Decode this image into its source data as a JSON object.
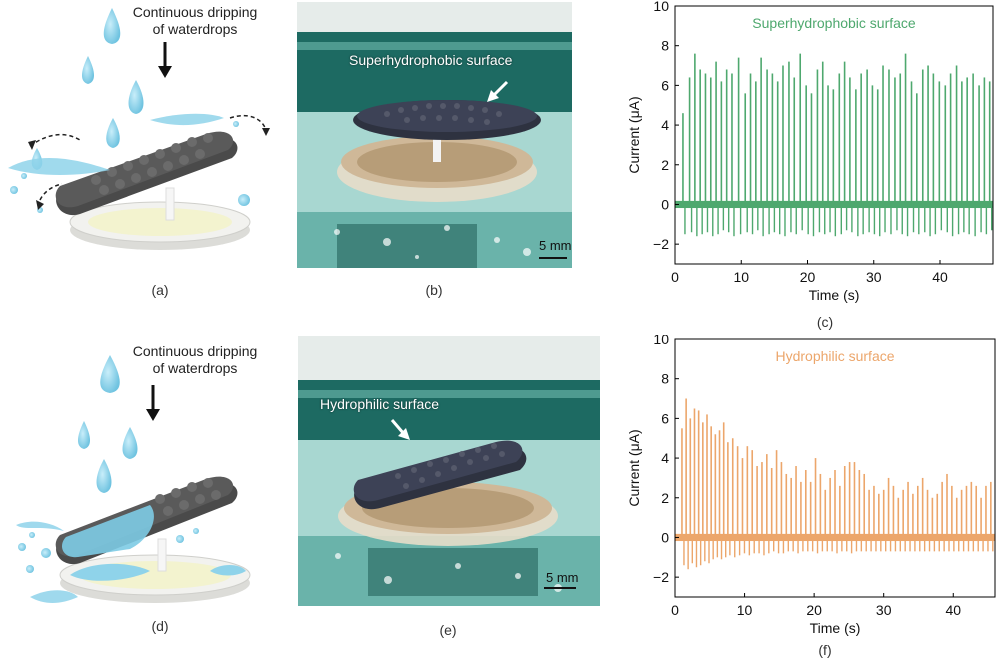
{
  "panels": {
    "a": {
      "label": "(a)",
      "caption_line1": "Continuous dripping",
      "caption_line2": "of waterdrops",
      "colors": {
        "water": "#8fd3ea",
        "disc": "#e9e9e6",
        "fabric": "#4a4a4a"
      }
    },
    "b": {
      "label": "(b)",
      "annotation": "Superhydrophobic surface",
      "scale": "5 mm"
    },
    "c": {
      "label": "(c)",
      "chart_data": {
        "type": "line",
        "title": "Superhydrophobic surface",
        "xlabel": "Time (s)",
        "ylabel": "Current (μA)",
        "xlim": [
          0,
          48
        ],
        "ylim": [
          -3,
          10
        ],
        "xticks": [
          0,
          10,
          20,
          30,
          40
        ],
        "yticks": [
          -2,
          0,
          2,
          4,
          6,
          8,
          10
        ],
        "color": "#4ea86e",
        "baseline": 0,
        "series": [
          {
            "peak_times": [
              1.2,
              2.2,
              3.0,
              3.8,
              4.6,
              5.4,
              6.2,
              7.0,
              7.8,
              8.6,
              9.6,
              10.6,
              11.4,
              12.2,
              13.0,
              13.9,
              14.7,
              15.5,
              16.3,
              17.2,
              18.0,
              18.9,
              19.8,
              20.6,
              21.5,
              22.3,
              23.1,
              23.9,
              24.8,
              25.6,
              26.4,
              27.3,
              28.1,
              29.0,
              29.8,
              30.6,
              31.4,
              32.3,
              33.2,
              34.0,
              34.8,
              35.7,
              36.5,
              37.4,
              38.2,
              39.0,
              39.9,
              40.8,
              41.6,
              42.5,
              43.3,
              44.1,
              45.0,
              45.9,
              46.7,
              47.5
            ],
            "peak_values": [
              4.6,
              6.4,
              7.6,
              6.8,
              6.6,
              6.4,
              7.2,
              6.2,
              6.8,
              6.6,
              7.4,
              5.6,
              6.6,
              6.2,
              7.4,
              6.8,
              6.6,
              6.2,
              7.0,
              7.2,
              6.4,
              7.6,
              6.0,
              5.6,
              6.8,
              7.2,
              6.0,
              5.8,
              6.6,
              7.2,
              6.4,
              5.8,
              6.6,
              6.8,
              6.0,
              5.8,
              7.0,
              6.8,
              6.4,
              6.6,
              7.6,
              6.2,
              5.6,
              6.8,
              7.0,
              6.6,
              6.2,
              6.0,
              6.6,
              7.0,
              6.2,
              6.4,
              6.6,
              6.0,
              6.4,
              6.2
            ],
            "trough_values": [
              -1.5,
              -1.4,
              -1.6,
              -1.5,
              -1.4,
              -1.6,
              -1.5,
              -1.3,
              -1.4,
              -1.6,
              -1.5,
              -1.4,
              -1.5,
              -1.3,
              -1.6,
              -1.5,
              -1.4,
              -1.5,
              -1.6,
              -1.4,
              -1.5,
              -1.3,
              -1.5,
              -1.6,
              -1.4,
              -1.5,
              -1.4,
              -1.6,
              -1.5,
              -1.3,
              -1.4,
              -1.6,
              -1.5,
              -1.4,
              -1.5,
              -1.6,
              -1.4,
              -1.5,
              -1.3,
              -1.5,
              -1.6,
              -1.4,
              -1.5,
              -1.4,
              -1.6,
              -1.5,
              -1.3,
              -1.4,
              -1.6,
              -1.5,
              -1.4,
              -1.5,
              -1.6,
              -1.4,
              -1.5,
              -1.3
            ]
          }
        ]
      }
    },
    "d": {
      "label": "(d)",
      "caption_line1": "Continuous dripping",
      "caption_line2": "of waterdrops"
    },
    "e": {
      "label": "(e)",
      "annotation": "Hydrophilic surface",
      "scale": "5 mm"
    },
    "f": {
      "label": "(f)",
      "chart_data": {
        "type": "line",
        "title": "Hydrophilic surface",
        "xlabel": "Time (s)",
        "ylabel": "Current (μA)",
        "xlim": [
          0,
          46
        ],
        "ylim": [
          -3,
          10
        ],
        "xticks": [
          0,
          10,
          20,
          30,
          40
        ],
        "yticks": [
          -2,
          0,
          2,
          4,
          6,
          8,
          10
        ],
        "color": "#eca66b",
        "baseline": 0,
        "series": [
          {
            "peak_times": [
              1.0,
              1.6,
              2.2,
              2.8,
              3.4,
              4.0,
              4.6,
              5.2,
              5.8,
              6.4,
              7.0,
              7.6,
              8.3,
              9.0,
              9.7,
              10.4,
              11.1,
              11.8,
              12.5,
              13.2,
              13.9,
              14.6,
              15.3,
              16.0,
              16.7,
              17.4,
              18.1,
              18.8,
              19.5,
              20.2,
              20.9,
              21.6,
              22.3,
              23.0,
              23.7,
              24.4,
              25.1,
              25.8,
              26.5,
              27.2,
              27.9,
              28.6,
              29.3,
              30.0,
              30.7,
              31.4,
              32.1,
              32.8,
              33.5,
              34.2,
              34.9,
              35.6,
              36.3,
              37.0,
              37.7,
              38.4,
              39.1,
              39.8,
              40.5,
              41.2,
              41.9,
              42.6,
              43.3,
              44.0,
              44.7,
              45.4
            ],
            "peak_values": [
              5.5,
              7.0,
              6.0,
              6.5,
              6.4,
              5.8,
              6.2,
              5.6,
              5.2,
              5.4,
              5.8,
              4.8,
              5.0,
              4.6,
              4.0,
              4.6,
              4.4,
              3.6,
              3.8,
              4.2,
              3.5,
              4.4,
              3.8,
              3.2,
              3.0,
              3.6,
              2.8,
              3.4,
              2.8,
              4.0,
              3.2,
              2.4,
              3.0,
              3.4,
              2.6,
              3.6,
              3.8,
              3.8,
              3.4,
              3.2,
              2.4,
              2.6,
              2.2,
              2.4,
              3.0,
              2.6,
              2.0,
              2.4,
              2.8,
              2.2,
              2.6,
              3.0,
              2.4,
              2.0,
              2.2,
              2.8,
              3.2,
              2.6,
              2.0,
              2.4,
              2.6,
              2.8,
              2.6,
              2.0,
              2.6,
              2.8
            ],
            "trough_values": [
              -1.4,
              -1.6,
              -1.3,
              -1.5,
              -1.4,
              -1.2,
              -1.3,
              -1.1,
              -1.0,
              -1.1,
              -1.0,
              -0.9,
              -1.0,
              -0.9,
              -0.8,
              -0.9,
              -0.8,
              -0.8,
              -0.9,
              -0.8,
              -0.7,
              -0.8,
              -0.8,
              -0.7,
              -0.7,
              -0.8,
              -0.7,
              -0.7,
              -0.7,
              -0.8,
              -0.7,
              -0.7,
              -0.7,
              -0.8,
              -0.7,
              -0.7,
              -0.8,
              -0.7,
              -0.7,
              -0.7,
              -0.7,
              -0.7,
              -0.7,
              -0.7,
              -0.7,
              -0.7,
              -0.7,
              -0.7,
              -0.7,
              -0.7,
              -0.7,
              -0.7,
              -0.7,
              -0.7,
              -0.7,
              -0.7,
              -0.7,
              -0.7,
              -0.7,
              -0.7,
              -0.7,
              -0.7,
              -0.7,
              -0.7,
              -0.7,
              -0.7
            ]
          }
        ]
      }
    }
  }
}
